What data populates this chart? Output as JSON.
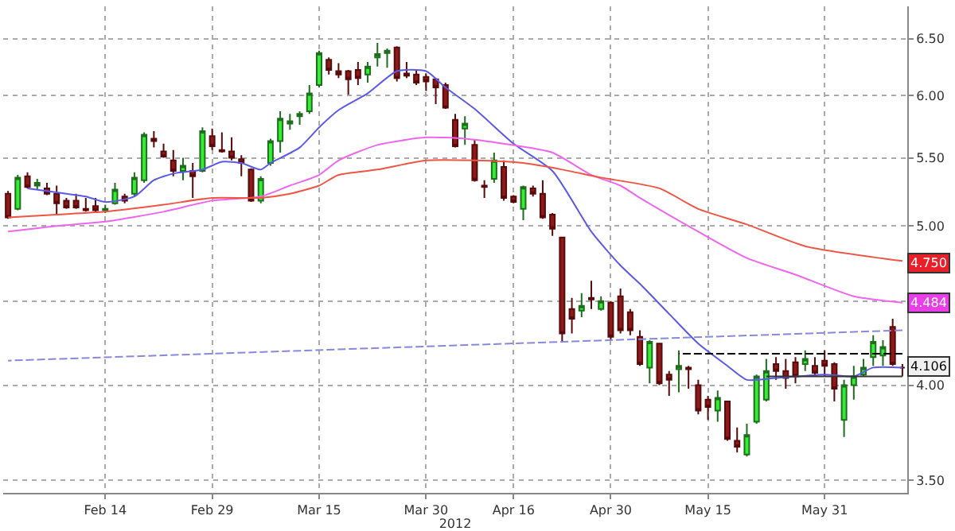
{
  "chart_data": {
    "type": "candlestick",
    "xlabel": "2012",
    "categories": [
      null,
      null,
      null,
      null,
      null,
      null,
      null,
      null,
      null,
      null,
      "Feb 14",
      null,
      null,
      null,
      null,
      null,
      null,
      null,
      null,
      null,
      null,
      "Feb 29",
      null,
      null,
      null,
      null,
      null,
      null,
      null,
      null,
      null,
      null,
      "Mar 15",
      null,
      null,
      null,
      null,
      null,
      null,
      null,
      null,
      null,
      null,
      "Mar 30",
      null,
      null,
      null,
      null,
      null,
      null,
      null,
      null,
      "Apr 16",
      null,
      null,
      null,
      null,
      null,
      null,
      null,
      null,
      null,
      "Apr 30",
      null,
      null,
      null,
      null,
      null,
      null,
      null,
      null,
      null,
      "May 15",
      null,
      null,
      null,
      null,
      null,
      null,
      null,
      null,
      null,
      null,
      null,
      "May 31",
      null,
      null,
      null,
      null,
      null,
      null,
      null,
      null
    ],
    "ohlc": [
      [
        5.23,
        5.25,
        5.05,
        5.06
      ],
      [
        5.12,
        5.37,
        5.11,
        5.35
      ],
      [
        5.36,
        5.39,
        5.27,
        5.28
      ],
      [
        5.29,
        5.34,
        5.26,
        5.31
      ],
      [
        5.27,
        5.31,
        5.22,
        5.23
      ],
      [
        5.23,
        5.29,
        5.08,
        5.16
      ],
      [
        5.18,
        5.2,
        5.12,
        5.13
      ],
      [
        5.18,
        5.23,
        5.12,
        5.13
      ],
      [
        5.12,
        5.2,
        5.1,
        5.11
      ],
      [
        5.14,
        5.2,
        5.09,
        5.11
      ],
      [
        5.11,
        5.15,
        5.09,
        5.12
      ],
      [
        5.16,
        5.31,
        5.15,
        5.26
      ],
      [
        5.21,
        5.23,
        5.16,
        5.18
      ],
      [
        5.23,
        5.39,
        5.21,
        5.35
      ],
      [
        5.33,
        5.7,
        5.31,
        5.68
      ],
      [
        5.65,
        5.71,
        5.58,
        5.63
      ],
      [
        5.55,
        5.61,
        5.5,
        5.51
      ],
      [
        5.48,
        5.56,
        5.36,
        5.4
      ],
      [
        5.4,
        5.5,
        5.33,
        5.44
      ],
      [
        5.4,
        5.46,
        5.2,
        5.36
      ],
      [
        5.4,
        5.74,
        5.39,
        5.71
      ],
      [
        5.67,
        5.73,
        5.56,
        5.59
      ],
      [
        5.56,
        5.7,
        5.54,
        5.55
      ],
      [
        5.55,
        5.66,
        5.48,
        5.5
      ],
      [
        5.49,
        5.52,
        5.36,
        5.46
      ],
      [
        5.41,
        5.42,
        5.17,
        5.18
      ],
      [
        5.18,
        5.36,
        5.16,
        5.34
      ],
      [
        5.46,
        5.65,
        5.44,
        5.63
      ],
      [
        5.63,
        5.87,
        5.54,
        5.81
      ],
      [
        5.77,
        5.85,
        5.72,
        5.79
      ],
      [
        5.83,
        5.87,
        5.76,
        5.85
      ],
      [
        5.87,
        6.09,
        5.85,
        6.02
      ],
      [
        6.09,
        6.39,
        6.07,
        6.37
      ],
      [
        6.31,
        6.33,
        6.18,
        6.22
      ],
      [
        6.21,
        6.28,
        6.15,
        6.18
      ],
      [
        6.21,
        6.22,
        6.01,
        6.14
      ],
      [
        6.22,
        6.29,
        6.09,
        6.15
      ],
      [
        6.18,
        6.29,
        6.11,
        6.25
      ],
      [
        6.33,
        6.46,
        6.25,
        6.36
      ],
      [
        6.37,
        6.41,
        6.24,
        6.39
      ],
      [
        6.42,
        6.43,
        6.12,
        6.15
      ],
      [
        6.19,
        6.29,
        6.15,
        6.17
      ],
      [
        6.18,
        6.22,
        6.09,
        6.11
      ],
      [
        6.16,
        6.19,
        6.04,
        6.12
      ],
      [
        6.14,
        6.15,
        5.93,
        6.07
      ],
      [
        6.09,
        6.11,
        5.89,
        5.9
      ],
      [
        5.8,
        5.85,
        5.58,
        5.59
      ],
      [
        5.73,
        5.83,
        5.6,
        5.77
      ],
      [
        5.6,
        5.64,
        5.32,
        5.33
      ],
      [
        5.29,
        5.33,
        5.2,
        5.28
      ],
      [
        5.34,
        5.54,
        5.31,
        5.48
      ],
      [
        5.43,
        5.48,
        5.18,
        5.2
      ],
      [
        5.21,
        5.22,
        5.16,
        5.17
      ],
      [
        5.12,
        5.29,
        5.04,
        5.28
      ],
      [
        5.27,
        5.29,
        5.21,
        5.23
      ],
      [
        5.23,
        5.33,
        5.05,
        5.06
      ],
      [
        5.08,
        5.09,
        4.93,
        4.98
      ],
      [
        4.92,
        4.92,
        4.25,
        4.3
      ],
      [
        4.45,
        4.52,
        4.3,
        4.39
      ],
      [
        4.44,
        4.55,
        4.4,
        4.47
      ],
      [
        4.52,
        4.63,
        4.45,
        4.51
      ],
      [
        4.45,
        4.53,
        4.44,
        4.5
      ],
      [
        4.49,
        4.5,
        4.26,
        4.28
      ],
      [
        4.53,
        4.58,
        4.3,
        4.32
      ],
      [
        4.43,
        4.45,
        4.29,
        4.32
      ],
      [
        4.28,
        4.32,
        4.11,
        4.12
      ],
      [
        4.1,
        4.26,
        4.01,
        4.25
      ],
      [
        4.24,
        4.24,
        4.0,
        4.01
      ],
      [
        4.06,
        4.08,
        3.94,
        4.03
      ],
      [
        4.09,
        4.2,
        3.96,
        4.11
      ],
      [
        4.1,
        4.11,
        3.98,
        4.09
      ],
      [
        4.0,
        4.03,
        3.84,
        3.86
      ],
      [
        3.92,
        3.94,
        3.81,
        3.88
      ],
      [
        3.86,
        3.97,
        3.8,
        3.93
      ],
      [
        3.91,
        3.91,
        3.7,
        3.71
      ],
      [
        3.7,
        3.77,
        3.64,
        3.67
      ],
      [
        3.63,
        3.79,
        3.62,
        3.73
      ],
      [
        3.8,
        4.06,
        3.79,
        4.05
      ],
      [
        3.92,
        4.15,
        3.91,
        4.08
      ],
      [
        4.12,
        4.16,
        4.03,
        4.08
      ],
      [
        4.08,
        4.15,
        3.98,
        4.04
      ],
      [
        4.13,
        4.16,
        4.01,
        4.05
      ],
      [
        4.12,
        4.2,
        4.08,
        4.15
      ],
      [
        4.11,
        4.16,
        4.05,
        4.07
      ],
      [
        4.14,
        4.2,
        4.05,
        4.11
      ],
      [
        4.12,
        4.13,
        3.91,
        3.98
      ],
      [
        3.81,
        4.03,
        3.72,
        4.0
      ],
      [
        4.0,
        4.11,
        3.92,
        4.05
      ],
      [
        4.06,
        4.15,
        4.05,
        4.1
      ],
      [
        4.16,
        4.29,
        4.11,
        4.25
      ],
      [
        4.17,
        4.26,
        4.11,
        4.22
      ],
      [
        4.34,
        4.39,
        4.11,
        4.12
      ],
      [
        4.1,
        4.12,
        4.05,
        4.1
      ]
    ],
    "series": [
      {
        "type": "line",
        "color": "#5a5ae6",
        "line_style": "solid",
        "values": [
          null,
          null,
          5.27,
          null,
          null,
          5.24,
          null,
          null,
          5.21,
          null,
          5.17,
          null,
          null,
          5.21,
          null,
          5.33,
          null,
          5.38,
          null,
          null,
          5.41,
          null,
          5.47,
          null,
          5.46,
          null,
          5.41,
          5.46,
          null,
          null,
          5.58,
          null,
          5.74,
          null,
          5.88,
          null,
          null,
          6.02,
          null,
          null,
          6.21,
          null,
          null,
          6.21,
          null,
          6.07,
          null,
          null,
          5.89,
          null,
          null,
          null,
          5.61,
          null,
          null,
          null,
          5.4,
          null,
          null,
          null,
          4.96,
          null,
          null,
          4.73,
          null,
          4.61,
          null,
          null,
          4.42,
          null,
          null,
          4.24,
          null,
          null,
          4.11,
          null,
          4.03,
          null,
          null,
          4.04,
          null,
          null,
          null,
          null,
          4.06,
          null,
          null,
          4.05,
          null,
          4.1,
          null,
          null,
          4.1
        ]
      },
      {
        "type": "line",
        "color": "#ee66ee",
        "line_style": "solid",
        "values": [
          4.96,
          null,
          null,
          null,
          null,
          5.0,
          null,
          null,
          null,
          null,
          5.03,
          null,
          null,
          null,
          null,
          null,
          5.1,
          null,
          null,
          null,
          null,
          5.18,
          null,
          null,
          null,
          null,
          5.21,
          null,
          null,
          5.29,
          null,
          null,
          5.37,
          null,
          5.48,
          null,
          null,
          null,
          5.6,
          null,
          null,
          null,
          null,
          5.66,
          null,
          null,
          null,
          5.65,
          null,
          null,
          null,
          5.61,
          null,
          null,
          null,
          null,
          5.54,
          null,
          null,
          null,
          5.37,
          null,
          null,
          5.29,
          null,
          5.2,
          null,
          null,
          null,
          null,
          null,
          4.96,
          null,
          null,
          null,
          null,
          4.78,
          null,
          null,
          null,
          null,
          4.67,
          null,
          null,
          null,
          null,
          null,
          4.53,
          null,
          null,
          null,
          null,
          4.49
        ]
      },
      {
        "type": "line",
        "color": "#ee5544",
        "line_style": "solid",
        "values": [
          5.06,
          null,
          null,
          null,
          null,
          5.08,
          null,
          null,
          null,
          null,
          5.1,
          null,
          null,
          null,
          null,
          null,
          5.15,
          null,
          null,
          null,
          null,
          5.2,
          null,
          null,
          null,
          null,
          5.2,
          null,
          null,
          5.23,
          null,
          null,
          5.29,
          null,
          5.37,
          null,
          null,
          null,
          5.41,
          null,
          null,
          null,
          null,
          5.48,
          null,
          null,
          null,
          null,
          5.48,
          null,
          null,
          null,
          null,
          5.46,
          null,
          null,
          null,
          5.41,
          null,
          null,
          null,
          5.35,
          null,
          null,
          null,
          null,
          null,
          5.27,
          null,
          null,
          null,
          5.12,
          null,
          null,
          null,
          null,
          5.01,
          null,
          null,
          null,
          null,
          null,
          4.86,
          null,
          null,
          null,
          null,
          null,
          null,
          null,
          null,
          null,
          4.76
        ]
      },
      {
        "type": "line",
        "color": "#8888dd",
        "line_style": "dashed",
        "values": [
          4.14,
          null,
          null,
          null,
          null,
          null,
          null,
          null,
          null,
          null,
          null,
          null,
          null,
          null,
          null,
          null,
          null,
          null,
          null,
          null,
          null,
          null,
          null,
          null,
          null,
          null,
          null,
          null,
          null,
          null,
          null,
          null,
          null,
          null,
          null,
          null,
          null,
          null,
          null,
          null,
          null,
          null,
          null,
          null,
          null,
          null,
          null,
          null,
          null,
          null,
          null,
          null,
          null,
          null,
          null,
          null,
          null,
          null,
          null,
          null,
          null,
          null,
          null,
          null,
          null,
          null,
          null,
          null,
          null,
          null,
          null,
          null,
          null,
          null,
          null,
          null,
          null,
          null,
          null,
          null,
          null,
          null,
          null,
          null,
          null,
          null,
          null,
          null,
          null,
          null,
          null,
          null,
          4.32
        ]
      },
      {
        "type": "line",
        "color": "#000000",
        "line_style": "dashed",
        "values": [
          null,
          null,
          null,
          null,
          null,
          null,
          null,
          null,
          null,
          null,
          null,
          null,
          null,
          null,
          null,
          null,
          null,
          null,
          null,
          null,
          null,
          null,
          null,
          null,
          null,
          null,
          null,
          null,
          null,
          null,
          null,
          null,
          null,
          null,
          null,
          null,
          null,
          null,
          null,
          null,
          null,
          null,
          null,
          null,
          null,
          null,
          null,
          null,
          null,
          null,
          null,
          null,
          null,
          null,
          null,
          null,
          null,
          null,
          null,
          null,
          null,
          null,
          null,
          null,
          null,
          null,
          null,
          null,
          null,
          4.18,
          null,
          null,
          null,
          null,
          null,
          null,
          null,
          null,
          null,
          null,
          null,
          null,
          null,
          null,
          null,
          null,
          null,
          null,
          null,
          null,
          null,
          null,
          4.18
        ]
      },
      {
        "type": "line",
        "color": "#333333",
        "line_style": "solid",
        "values": [
          null,
          null,
          null,
          null,
          null,
          null,
          null,
          null,
          null,
          null,
          null,
          null,
          null,
          null,
          null,
          null,
          null,
          null,
          null,
          null,
          null,
          null,
          null,
          null,
          null,
          null,
          null,
          null,
          null,
          null,
          null,
          null,
          null,
          null,
          null,
          null,
          null,
          null,
          null,
          null,
          null,
          null,
          null,
          null,
          null,
          null,
          null,
          null,
          null,
          null,
          null,
          null,
          null,
          null,
          null,
          null,
          null,
          null,
          null,
          null,
          null,
          null,
          null,
          null,
          null,
          null,
          null,
          null,
          null,
          null,
          null,
          null,
          null,
          null,
          null,
          null,
          null,
          null,
          4.05,
          null,
          null,
          null,
          null,
          null,
          null,
          null,
          null,
          null,
          null,
          null,
          null,
          null,
          4.05
        ]
      }
    ],
    "annotations": [
      {
        "text": "4.750",
        "y": 4.75
      },
      {
        "text": "4.484",
        "y": 4.484
      },
      {
        "text": "4.106",
        "y": 4.106
      }
    ],
    "log": true,
    "ylim": [
      3.44,
      6.8
    ],
    "yticks": [
      {
        "value": 3.5,
        "label": "3.50"
      },
      {
        "value": 4.0,
        "label": "4.00"
      },
      {
        "value": 4.5,
        "label": null
      },
      {
        "value": 5.0,
        "label": "5.00"
      },
      {
        "value": 5.5,
        "label": "5.50"
      },
      {
        "value": 6.0,
        "label": "6.00"
      },
      {
        "value": 6.5,
        "label": "6.50"
      }
    ],
    "grid": true
  }
}
